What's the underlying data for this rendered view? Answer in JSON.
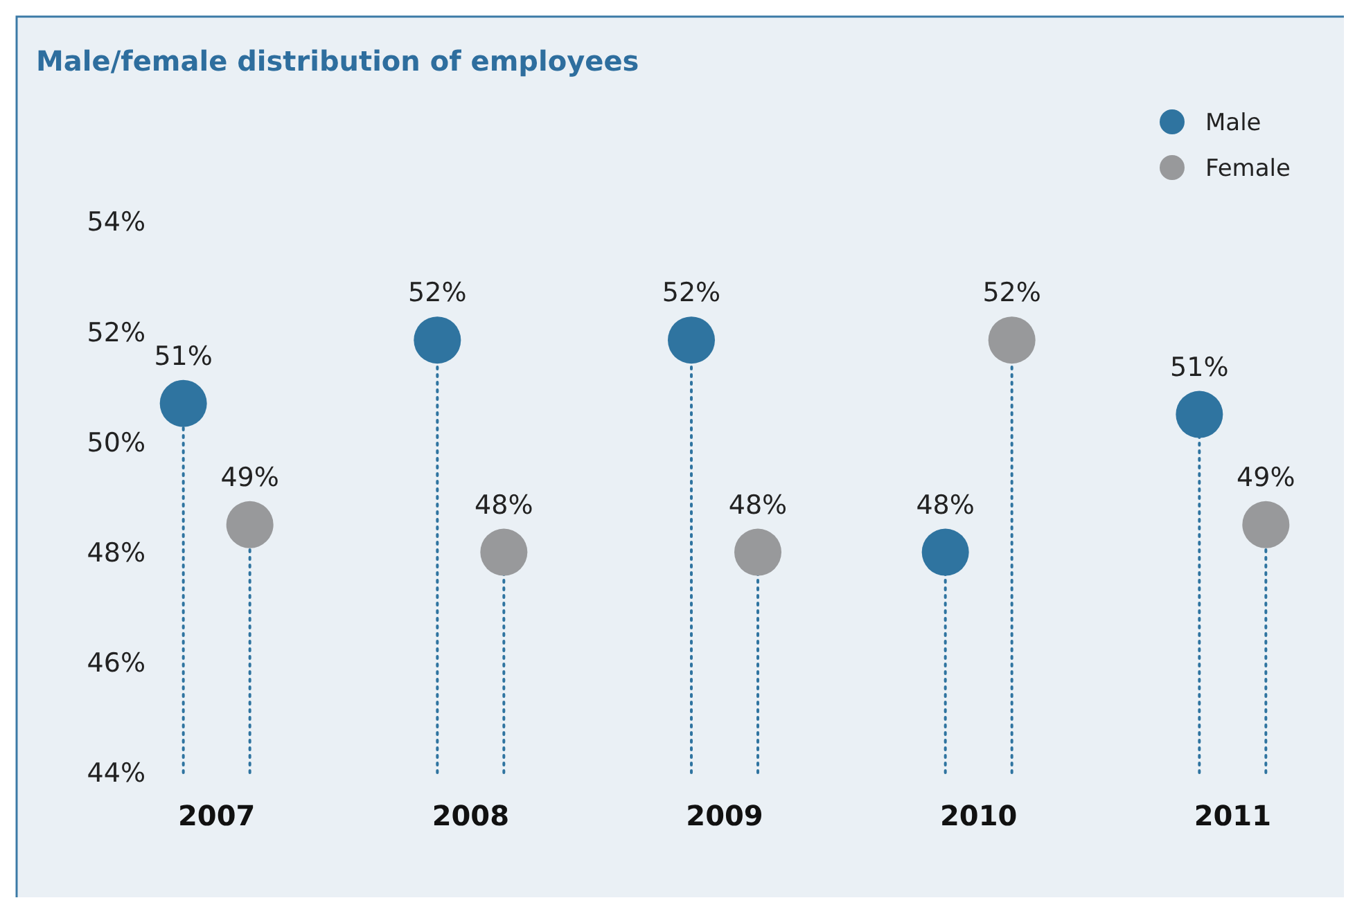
{
  "chart_data": {
    "type": "lollipop",
    "title": "Male/female distribution of employees",
    "categories": [
      "2007",
      "2008",
      "2009",
      "2010",
      "2011"
    ],
    "series": [
      {
        "name": "Male",
        "color": "#2f74a0",
        "values": [
          50.7,
          51.85,
          51.85,
          48,
          50.5
        ],
        "value_labels": [
          "51%",
          "52%",
          "52%",
          "48%",
          "51%"
        ]
      },
      {
        "name": "Female",
        "color": "#98999b",
        "values": [
          48.5,
          48,
          48,
          51.85,
          48.5
        ],
        "value_labels": [
          "49%",
          "48%",
          "48%",
          "52%",
          "49%"
        ]
      }
    ],
    "ylim": [
      44,
      54
    ],
    "yticks": [
      {
        "value": 44,
        "label": "44%"
      },
      {
        "value": 46,
        "label": "46%"
      },
      {
        "value": 48,
        "label": "48%"
      },
      {
        "value": 50,
        "label": "50%"
      },
      {
        "value": 52,
        "label": "52%"
      },
      {
        "value": 54,
        "label": "54%"
      }
    ],
    "grid": false,
    "legend": "top right",
    "line_style": "dotted",
    "marker": "circle"
  }
}
